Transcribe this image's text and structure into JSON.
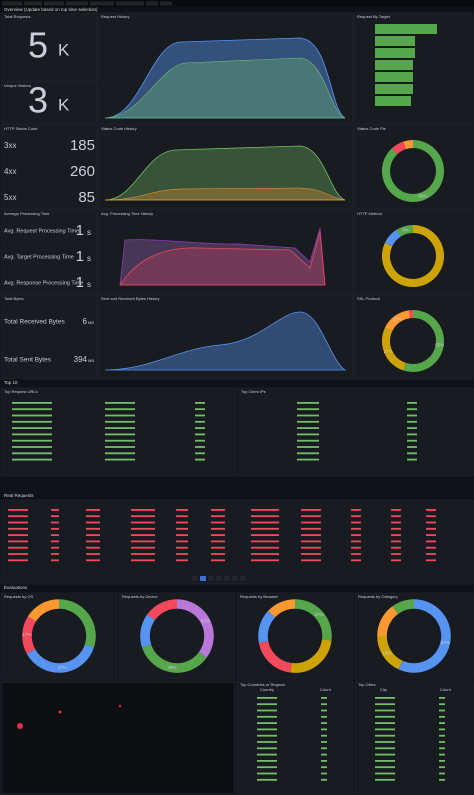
{
  "sections": {
    "overview": "Overview (Update based on top time selection)",
    "top10": "Top 10",
    "real_requests": "Real Requests",
    "evaluations": "Evaluations"
  },
  "stats": {
    "total_requests": {
      "title": "Total Requests",
      "value": "5",
      "unit": "K"
    },
    "unique_visitors": {
      "title": "Unique Visitors",
      "value": "3",
      "unit": "K"
    },
    "status_codes": {
      "title": "HTTP Status Code",
      "rows": [
        {
          "label": "3xx",
          "value": "185"
        },
        {
          "label": "4xx",
          "value": "260"
        },
        {
          "label": "5xx",
          "value": "85"
        }
      ]
    },
    "processing": {
      "title": "Average Processing Time",
      "rows": [
        {
          "label": "Avg. Request Processing Time",
          "value": "1",
          "unit": "s"
        },
        {
          "label": "Avg. Target Processing Time",
          "value": "1",
          "unit": "s"
        },
        {
          "label": "Avg. Response Processing Time",
          "value": "1",
          "unit": "s"
        }
      ]
    },
    "bytes": {
      "title": "Total Bytes",
      "rows": [
        {
          "label": "Total Received Bytes",
          "value": "6",
          "unit": "MB"
        },
        {
          "label": "Total Sent Bytes",
          "value": "394",
          "unit": "MB"
        }
      ]
    }
  },
  "panels": {
    "request_history": "Request History",
    "request_by_target": "Request By Target",
    "status_code_history": "Status Code History",
    "avg_processing_history": "Avg. Processing Time History",
    "bytes_history": "Sent and Received Bytes History",
    "top_request_urls": "Top Request URLs",
    "top_client_ips": "Top Client IPs",
    "requests_by_countries": "Requests by Countries or Regions",
    "top_countries": "Top Countries or Regions",
    "top_cities": "Top Cities"
  },
  "tables": {
    "countries_header": [
      "Country",
      "Count"
    ],
    "cities_header": [
      "City",
      "Count"
    ]
  },
  "donuts": [
    {
      "title": "Status Code Pie",
      "segments": [
        {
          "color": "#56a64b",
          "value": 88,
          "label": "88%"
        },
        {
          "color": "#f2495c",
          "value": 7
        },
        {
          "color": "#ff9830",
          "value": 5
        }
      ]
    },
    {
      "title": "HTTP Method",
      "segments": [
        {
          "color": "#cca300",
          "value": 82
        },
        {
          "color": "#5794f2",
          "value": 9
        },
        {
          "color": "#56a64b",
          "value": 9,
          "label": "9%"
        }
      ]
    },
    {
      "title": "SSL Protocol",
      "segments": [
        {
          "color": "#56a64b",
          "value": 55,
          "label": "55%"
        },
        {
          "color": "#cca300",
          "value": 27,
          "label": "27%"
        },
        {
          "color": "#ff9830",
          "value": 16,
          "label": "16%"
        },
        {
          "color": "#f2495c",
          "value": 2
        }
      ]
    },
    {
      "title": "Requests by OS",
      "segments": [
        {
          "color": "#56a64b",
          "value": 30
        },
        {
          "color": "#5794f2",
          "value": 37,
          "label": "37%"
        },
        {
          "color": "#f2495c",
          "value": 17,
          "label": "17%"
        },
        {
          "color": "#ff9830",
          "value": 16
        }
      ]
    },
    {
      "title": "Requests by Device",
      "segments": [
        {
          "color": "#b877d9",
          "value": 35,
          "label": "35%"
        },
        {
          "color": "#56a64b",
          "value": 35,
          "label": "35%"
        },
        {
          "color": "#5794f2",
          "value": 15
        },
        {
          "color": "#f2495c",
          "value": 15
        }
      ]
    },
    {
      "title": "Requests by Browser",
      "segments": [
        {
          "color": "#56a64b",
          "value": 27,
          "label": "27%"
        },
        {
          "color": "#cca300",
          "value": 25
        },
        {
          "color": "#f2495c",
          "value": 20
        },
        {
          "color": "#5794f2",
          "value": 15
        },
        {
          "color": "#ff9830",
          "value": 13
        }
      ]
    },
    {
      "title": "Requests by Category",
      "segments": [
        {
          "color": "#5794f2",
          "value": 57,
          "label": "57%"
        },
        {
          "color": "#cca300",
          "value": 18,
          "label": "18%"
        },
        {
          "color": "#ff9830",
          "value": 15
        },
        {
          "color": "#56a64b",
          "value": 10
        }
      ]
    }
  ]
}
